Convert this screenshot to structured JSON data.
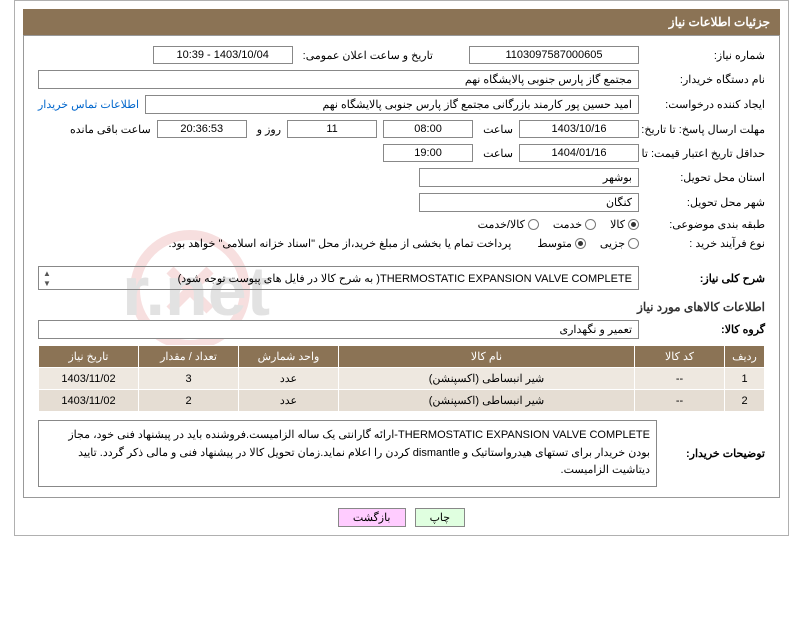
{
  "header": {
    "title": "جزئیات اطلاعات نیاز"
  },
  "need_number": {
    "label": "شماره نیاز:",
    "value": "1103097587000605"
  },
  "announce": {
    "label": "تاریخ و ساعت اعلان عمومی:",
    "value": "1403/10/04 - 10:39"
  },
  "buyer_org": {
    "label": "نام دستگاه خریدار:",
    "value": "مجتمع گاز پارس جنوبی  پالایشگاه نهم"
  },
  "requester": {
    "label": "ایجاد کننده درخواست:",
    "value": "امید حسین پور کارمند بازرگانی مجتمع گاز پارس جنوبی  پالایشگاه نهم",
    "contact_link": "اطلاعات تماس خریدار"
  },
  "deadline": {
    "label": "مهلت ارسال پاسخ: تا تاریخ:",
    "date": "1403/10/16",
    "time_label": "ساعت",
    "time": "08:00",
    "days": "11",
    "days_label": "روز و",
    "countdown": "20:36:53",
    "remain_label": "ساعت باقی مانده"
  },
  "validity": {
    "label": "حداقل تاریخ اعتبار قیمت: تا تاریخ:",
    "date": "1404/01/16",
    "time_label": "ساعت",
    "time": "19:00"
  },
  "province": {
    "label": "استان محل تحویل:",
    "value": "بوشهر"
  },
  "city": {
    "label": "شهر محل تحویل:",
    "value": "کنگان"
  },
  "subject_class": {
    "label": "طبقه بندی موضوعی:",
    "options": [
      {
        "label": "کالا",
        "checked": true
      },
      {
        "label": "خدمت",
        "checked": false
      },
      {
        "label": "کالا/خدمت",
        "checked": false
      }
    ]
  },
  "buy_process": {
    "label": "نوع فرآیند خرید :",
    "options": [
      {
        "label": "جزیی",
        "checked": false
      },
      {
        "label": "متوسط",
        "checked": true
      }
    ],
    "note": "پرداخت تمام یا بخشی از مبلغ خرید،از محل \"اسناد خزانه اسلامی\" خواهد بود."
  },
  "general_desc": {
    "label": "شرح کلی نیاز:",
    "value": "THERMOSTATIC EXPANSION VALVE COMPLETE( به شرح کالا در فایل های پیوست توجه شود)"
  },
  "goods_section": {
    "title": "اطلاعات کالاهای مورد نیاز"
  },
  "goods_group": {
    "label": "گروه کالا:",
    "value": "تعمیر و نگهداری"
  },
  "table": {
    "headers": [
      "ردیف",
      "کد کالا",
      "نام کالا",
      "واحد شمارش",
      "تعداد / مقدار",
      "تاریخ نیاز"
    ],
    "rows": [
      [
        "1",
        "--",
        "شیر انبساطی (اکسپنشن)",
        "عدد",
        "3",
        "1403/11/02"
      ],
      [
        "2",
        "--",
        "شیر انبساطی (اکسپنشن)",
        "عدد",
        "2",
        "1403/11/02"
      ]
    ]
  },
  "buyer_notes": {
    "label": "توضیحات خریدار:",
    "value": "THERMOSTATIC EXPANSION VALVE COMPLETE-ارائه گارانتی یک ساله الزامیست.فروشنده باید در پیشنهاد فنی خود، مجاز بودن خریدار برای تستهای هیدرواستاتیک و dismantle کردن را اعلام نماید.زمان تحویل کالا در پیشنهاد فنی و مالی ذکر گردد. تایید دیتاشیت الزامیست."
  },
  "buttons": {
    "print": "چاپ",
    "back": "بازگشت"
  },
  "colors": {
    "header_bg": "#8b7355",
    "row_bg1": "#eee8e0",
    "row_bg2": "#e5ddd3",
    "link": "#0066cc"
  }
}
